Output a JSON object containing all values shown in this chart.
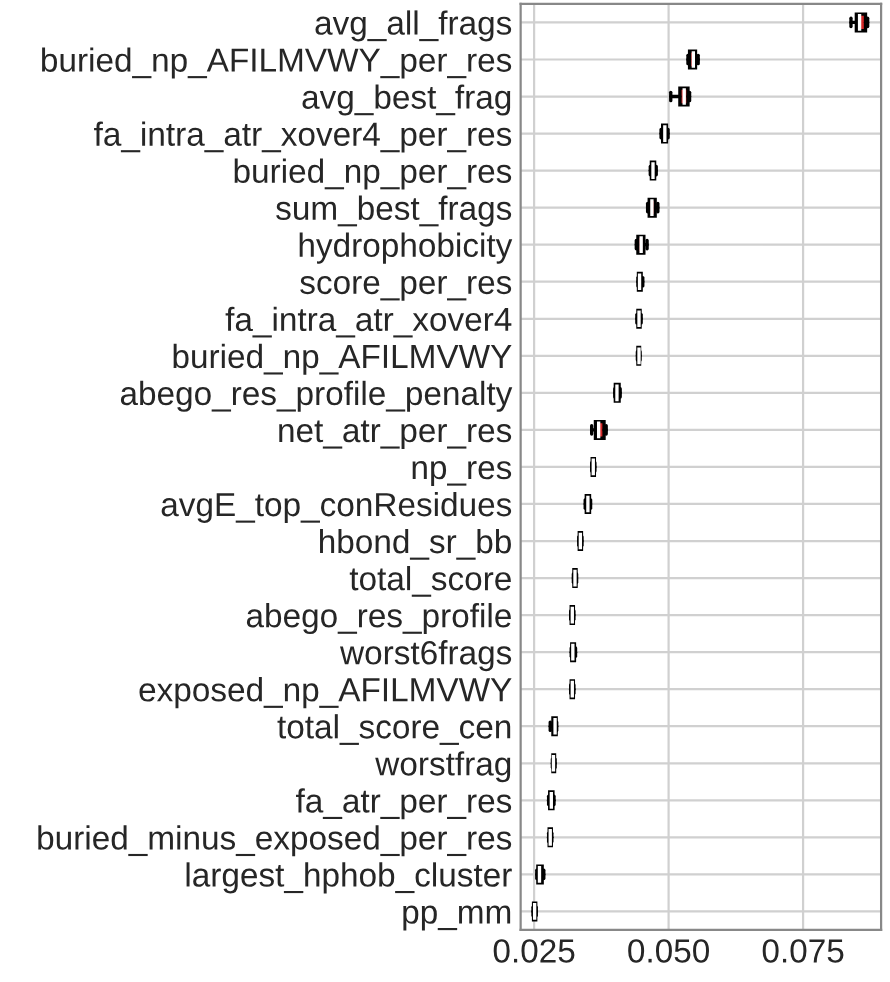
{
  "chart_data": {
    "type": "box",
    "orientation": "horizontal",
    "color": "#d42a2a",
    "grid": true,
    "categories": [
      "avg_all_frags",
      "buried_np_AFILMVWY_per_res",
      "avg_best_frag",
      "fa_intra_atr_xover4_per_res",
      "buried_np_per_res",
      "sum_best_frags",
      "hydrophobicity",
      "score_per_res",
      "fa_intra_atr_xover4",
      "buried_np_AFILMVWY",
      "abego_res_profile_penalty",
      "net_atr_per_res",
      "np_res",
      "avgE_top_conResidues",
      "hbond_sr_bb",
      "total_score",
      "abego_res_profile",
      "worst6frags",
      "exposed_np_AFILMVWY",
      "total_score_cen",
      "worstfrag",
      "fa_atr_per_res",
      "buried_minus_exposed_per_res",
      "largest_hphob_cluster",
      "pp_mm"
    ],
    "boxes": [
      {
        "low": 0.0839,
        "q1": 0.0849,
        "median": 0.0855,
        "q3": 0.0866,
        "high": 0.087
      },
      {
        "low": 0.0536,
        "q1": 0.0539,
        "median": 0.0546,
        "q3": 0.055,
        "high": 0.0555
      },
      {
        "low": 0.0504,
        "q1": 0.0521,
        "median": 0.0529,
        "q3": 0.0536,
        "high": 0.0539
      },
      {
        "low": 0.0486,
        "q1": 0.0489,
        "median": 0.0493,
        "q3": 0.0496,
        "high": 0.0499
      },
      {
        "low": 0.0466,
        "q1": 0.0468,
        "median": 0.0471,
        "q3": 0.0474,
        "high": 0.0477
      },
      {
        "low": 0.0461,
        "q1": 0.0464,
        "median": 0.0469,
        "q3": 0.0475,
        "high": 0.048
      },
      {
        "low": 0.044,
        "q1": 0.0443,
        "median": 0.0449,
        "q3": 0.0454,
        "high": 0.046
      },
      {
        "low": 0.0443,
        "q1": 0.0444,
        "median": 0.0446,
        "q3": 0.0449,
        "high": 0.0452
      },
      {
        "low": 0.0441,
        "q1": 0.0443,
        "median": 0.0445,
        "q3": 0.0447,
        "high": 0.0449
      },
      {
        "low": 0.0442,
        "q1": 0.0443,
        "median": 0.0445,
        "q3": 0.0446,
        "high": 0.0447
      },
      {
        "low": 0.04,
        "q1": 0.0401,
        "median": 0.0404,
        "q3": 0.0408,
        "high": 0.041
      },
      {
        "low": 0.0357,
        "q1": 0.0364,
        "median": 0.037,
        "q3": 0.038,
        "high": 0.0384
      },
      {
        "low": 0.0357,
        "q1": 0.0358,
        "median": 0.036,
        "q3": 0.0362,
        "high": 0.0363
      },
      {
        "low": 0.0345,
        "q1": 0.0347,
        "median": 0.035,
        "q3": 0.0353,
        "high": 0.0355
      },
      {
        "low": 0.0333,
        "q1": 0.0334,
        "median": 0.0336,
        "q3": 0.0338,
        "high": 0.0339
      },
      {
        "low": 0.0323,
        "q1": 0.0324,
        "median": 0.0326,
        "q3": 0.0328,
        "high": 0.0329
      },
      {
        "low": 0.0318,
        "q1": 0.0319,
        "median": 0.0321,
        "q3": 0.0323,
        "high": 0.0324
      },
      {
        "low": 0.0319,
        "q1": 0.032,
        "median": 0.0322,
        "q3": 0.0325,
        "high": 0.0327
      },
      {
        "low": 0.0318,
        "q1": 0.0319,
        "median": 0.0321,
        "q3": 0.0323,
        "high": 0.0324
      },
      {
        "low": 0.028,
        "q1": 0.0285,
        "median": 0.0289,
        "q3": 0.0291,
        "high": 0.0292
      },
      {
        "low": 0.0284,
        "q1": 0.0285,
        "median": 0.0286,
        "q3": 0.0288,
        "high": 0.0289
      },
      {
        "low": 0.0277,
        "q1": 0.0279,
        "median": 0.0282,
        "q3": 0.0285,
        "high": 0.0287
      },
      {
        "low": 0.0277,
        "q1": 0.0278,
        "median": 0.028,
        "q3": 0.0282,
        "high": 0.0283
      },
      {
        "low": 0.0255,
        "q1": 0.0257,
        "median": 0.026,
        "q3": 0.0265,
        "high": 0.0268
      },
      {
        "low": 0.0248,
        "q1": 0.0249,
        "median": 0.0251,
        "q3": 0.0253,
        "high": 0.0254
      }
    ],
    "xlim": [
      0.0225,
      0.0895
    ],
    "xticks": [
      {
        "value": 0.025,
        "label": "0.025"
      },
      {
        "value": 0.05,
        "label": "0.050"
      },
      {
        "value": 0.075,
        "label": "0.075"
      }
    ]
  }
}
